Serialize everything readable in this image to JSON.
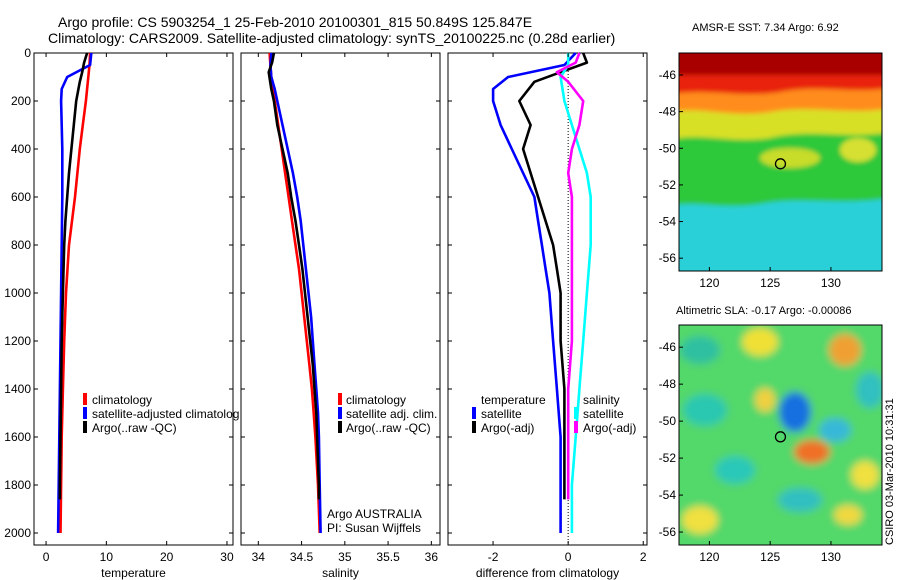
{
  "header": {
    "line1": "Argo profile: CS 5903254_1 25-Feb-2010 20100301_815 50.849S 125.847E",
    "line2": "Climatology: CARS2009. Satellite-adjusted climatology: synTS_20100225.nc (0.28d earlier)"
  },
  "colors": {
    "climatology": "#ff0000",
    "satellite": "#0000ff",
    "argo": "#000000",
    "sal_satellite": "#00ffff",
    "sal_argo": "#ff00ff"
  },
  "chart_data": [
    {
      "type": "line",
      "panel": "temperature",
      "xlabel": "temperature",
      "ylabel": "",
      "xlim": [
        -2,
        31
      ],
      "ylim": [
        2050,
        0
      ],
      "xticks": [
        0,
        10,
        20,
        30
      ],
      "yticks": [
        0,
        200,
        400,
        600,
        800,
        1000,
        1200,
        1400,
        1600,
        1800,
        2000
      ],
      "legend": [
        "climatology",
        "satellite-adjusted climatolog",
        "Argo(..raw -QC)"
      ],
      "series": [
        {
          "name": "climatology",
          "color": "#ff0000",
          "depth": [
            0,
            50,
            100,
            200,
            300,
            400,
            500,
            600,
            700,
            800,
            1000,
            1200,
            1400,
            1600,
            1800,
            2000
          ],
          "values": [
            7.3,
            7.2,
            7.0,
            6.6,
            6.1,
            5.6,
            5.2,
            4.8,
            4.3,
            3.8,
            3.3,
            3.0,
            2.8,
            2.6,
            2.5,
            2.4
          ]
        },
        {
          "name": "satellite-adjusted climatolog",
          "color": "#0000ff",
          "depth": [
            0,
            50,
            100,
            150,
            200,
            300,
            400,
            600,
            800,
            1000,
            1200,
            1400,
            1600,
            1800,
            2000
          ],
          "values": [
            7.5,
            7.3,
            3.5,
            2.6,
            2.5,
            2.6,
            2.7,
            2.7,
            2.6,
            2.5,
            2.4,
            2.3,
            2.2,
            2.1,
            2.0
          ]
        },
        {
          "name": "Argo(..raw -QC)",
          "color": "#000000",
          "depth": [
            0,
            40,
            80,
            120,
            200,
            300,
            400,
            500,
            600,
            700,
            800,
            1000,
            1200,
            1400,
            1600,
            1800,
            1860
          ],
          "values": [
            6.8,
            6.3,
            6.0,
            5.6,
            5.0,
            4.6,
            4.2,
            3.8,
            3.5,
            3.2,
            3.0,
            2.8,
            2.6,
            2.5,
            2.4,
            2.3,
            2.3
          ]
        }
      ]
    },
    {
      "type": "line",
      "panel": "salinity",
      "xlabel": "salinity",
      "ylabel": "",
      "xlim": [
        33.8,
        36.1
      ],
      "ylim": [
        2050,
        0
      ],
      "xticks": [
        34,
        34.5,
        35,
        35.5,
        36
      ],
      "xticklabels": [
        "34",
        "34.5",
        "35",
        "35.5",
        "36"
      ],
      "legend": [
        "climatology",
        "satellite adj. clim.",
        "Argo(..raw -QC)"
      ],
      "annotations": [
        "Argo AUSTRALIA",
        "PI: Susan Wijffels"
      ],
      "series": [
        {
          "name": "climatology",
          "color": "#ff0000",
          "depth": [
            0,
            50,
            100,
            200,
            300,
            400,
            500,
            600,
            700,
            800,
            900,
            1000,
            1100,
            1200,
            1300,
            1400,
            1500,
            1600,
            1800,
            2000
          ],
          "values": [
            34.13,
            34.14,
            34.15,
            34.19,
            34.23,
            34.27,
            34.31,
            34.35,
            34.39,
            34.43,
            34.47,
            34.5,
            34.53,
            34.56,
            34.59,
            34.62,
            34.64,
            34.66,
            34.69,
            34.71
          ]
        },
        {
          "name": "satellite adj. clim.",
          "color": "#0000ff",
          "depth": [
            0,
            50,
            100,
            150,
            200,
            300,
            400,
            500,
            600,
            700,
            800,
            900,
            1000,
            1100,
            1200,
            1300,
            1400,
            1500,
            1600,
            1800,
            2000
          ],
          "values": [
            34.15,
            34.14,
            34.15,
            34.19,
            34.22,
            34.28,
            34.34,
            34.4,
            34.45,
            34.49,
            34.52,
            34.55,
            34.58,
            34.61,
            34.63,
            34.65,
            34.67,
            34.69,
            34.7,
            34.71,
            34.72
          ]
        },
        {
          "name": "Argo(..raw -QC)",
          "color": "#000000",
          "depth": [
            0,
            40,
            80,
            150,
            200,
            300,
            400,
            500,
            600,
            700,
            800,
            900,
            1000,
            1100,
            1200,
            1300,
            1400,
            1500,
            1600,
            1800,
            1860
          ],
          "values": [
            34.18,
            34.16,
            34.12,
            34.15,
            34.18,
            34.22,
            34.28,
            34.34,
            34.38,
            34.43,
            34.47,
            34.51,
            34.54,
            34.57,
            34.6,
            34.63,
            34.65,
            34.67,
            34.68,
            34.7,
            34.7
          ]
        }
      ]
    },
    {
      "type": "line",
      "panel": "difference",
      "xlabel": "difference from climatology",
      "ylabel": "",
      "xlim": [
        -3.2,
        2.1
      ],
      "ylim": [
        2050,
        0
      ],
      "xticks": [
        -2,
        0,
        2
      ],
      "xticklabels": [
        "-2",
        "0",
        "2"
      ],
      "legend_headers": [
        "temperature",
        "salinity"
      ],
      "legend_temperature": [
        "satellite",
        "Argo(-adj)"
      ],
      "legend_salinity": [
        "satellite",
        "Argo(-adj)"
      ],
      "series": [
        {
          "name": "temperature satellite",
          "color": "#0000ff",
          "depth": [
            0,
            50,
            100,
            150,
            200,
            300,
            400,
            500,
            600,
            700,
            800,
            900,
            1000,
            1200,
            1400,
            1600,
            1800,
            2000
          ],
          "values": [
            0.2,
            -0.1,
            -1.6,
            -2.0,
            -2.0,
            -1.8,
            -1.5,
            -1.2,
            -0.9,
            -0.8,
            -0.7,
            -0.6,
            -0.5,
            -0.4,
            -0.3,
            -0.2,
            -0.2,
            -0.2
          ]
        },
        {
          "name": "temperature Argo(-adj)",
          "color": "#000000",
          "depth": [
            0,
            40,
            80,
            120,
            200,
            300,
            400,
            500,
            600,
            700,
            800,
            900,
            1000,
            1200,
            1400,
            1600,
            1800,
            1860
          ],
          "values": [
            0.4,
            0.5,
            -0.2,
            -0.9,
            -1.3,
            -1.0,
            -1.2,
            -1.0,
            -0.8,
            -0.6,
            -0.4,
            -0.3,
            -0.2,
            -0.2,
            -0.1,
            -0.1,
            -0.1,
            -0.1
          ]
        },
        {
          "name": "salinity satellite",
          "color": "#00ffff",
          "depth": [
            0,
            50,
            100,
            200,
            300,
            400,
            500,
            600,
            700,
            800,
            1000,
            1200,
            1400,
            1600,
            1800,
            2000
          ],
          "values": [
            0.0,
            0.0,
            -0.2,
            -0.1,
            0.1,
            0.3,
            0.5,
            0.6,
            0.6,
            0.6,
            0.5,
            0.4,
            0.3,
            0.2,
            0.1,
            0.1
          ]
        },
        {
          "name": "salinity Argo(-adj)",
          "color": "#ff00ff",
          "depth": [
            0,
            40,
            80,
            120,
            200,
            300,
            400,
            500,
            600,
            700,
            800,
            1000,
            1200,
            1400,
            1600,
            1800,
            1860
          ],
          "values": [
            0.3,
            0.2,
            -0.3,
            0.0,
            0.4,
            0.3,
            0.1,
            0.0,
            0.1,
            0.1,
            0.1,
            0.1,
            0.1,
            0.0,
            0.0,
            0.0,
            0.0
          ]
        }
      ]
    },
    {
      "type": "heatmap",
      "panel": "sst_map",
      "title": "AMSR-E SST: 7.34 Argo: 6.92",
      "xlim": [
        117.5,
        134.2
      ],
      "ylim": [
        -56.7,
        -44.8
      ],
      "xticks": [
        120,
        125,
        130
      ],
      "yticks": [
        -46,
        -48,
        -50,
        -52,
        -54,
        -56
      ],
      "xticklabels": [
        "120",
        "125",
        "130"
      ],
      "yticklabels": [
        "-46",
        "-48",
        "-50",
        "-52",
        "-54",
        "-56"
      ],
      "profile_location": [
        125.847,
        -50.849
      ]
    },
    {
      "type": "heatmap",
      "panel": "sla_map",
      "title": "Altimetric SLA: -0.17 Argo: -0.00086",
      "xlim": [
        117.5,
        134.2
      ],
      "ylim": [
        -56.7,
        -44.8
      ],
      "xticks": [
        120,
        125,
        130
      ],
      "yticks": [
        -46,
        -48,
        -50,
        -52,
        -54,
        -56
      ],
      "xticklabels": [
        "120",
        "125",
        "130"
      ],
      "yticklabels": [
        "-46",
        "-48",
        "-50",
        "-52",
        "-54",
        "-56"
      ],
      "profile_location": [
        125.847,
        -50.849
      ]
    }
  ],
  "footer": {
    "stamp": "CSIRO 03-Mar-2010 10:31:31"
  }
}
